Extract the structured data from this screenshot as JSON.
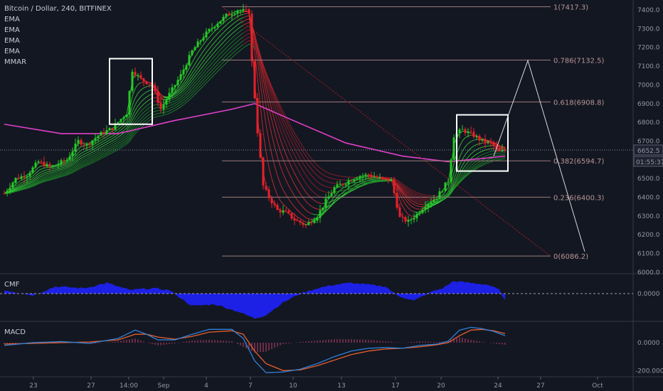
{
  "header": {
    "title": "Bitcoin / Dollar, 240, BITFINEX",
    "indicators": [
      "EMA",
      "EMA",
      "EMA",
      "EMA",
      "MMAR"
    ]
  },
  "colors": {
    "background": "#131722",
    "bull": "#26c926",
    "bear": "#e8202a",
    "ma_long": "#e040c8",
    "fib_line": "#9c7b7b",
    "cmf_fill": "#1e22f0",
    "macd_line": "#2f80d8",
    "signal_line": "#e8602c"
  },
  "price_axis": {
    "ticks": [
      "7400.0",
      "7300.0",
      "7200.0",
      "7100.0",
      "7000.0",
      "6900.0",
      "6800.0",
      "6700.0",
      "6600.0",
      "6500.0",
      "6400.0",
      "6300.0",
      "6200.0",
      "6100.0",
      "6000.0"
    ],
    "last_price": "6652.5",
    "countdown": "01:55:37"
  },
  "time_axis": {
    "ticks": [
      "23",
      "27",
      "14:00",
      "Sep",
      "4",
      "7",
      "10",
      "13",
      "17",
      "20",
      "24",
      "27",
      "Oct"
    ]
  },
  "fibonacci": [
    {
      "label": "1(7417.3)",
      "price": 7417.3
    },
    {
      "label": "0.786(7132.5)",
      "price": 7132.5
    },
    {
      "label": "0.618(6908.8)",
      "price": 6908.8
    },
    {
      "label": "0.382(6594.7)",
      "price": 6594.7
    },
    {
      "label": "0.236(6400.3)",
      "price": 6400.3
    },
    {
      "label": "0(6086.2)",
      "price": 6086.2
    }
  ],
  "cmf": {
    "title": "CMF",
    "ticks": [
      "0.0000"
    ]
  },
  "macd": {
    "title": "MACD",
    "ticks": [
      "0.0000",
      "-200.0000"
    ]
  },
  "chart_data": {
    "type": "candlestick",
    "symbol": "Bitcoin / Dollar",
    "interval": "240",
    "exchange": "BITFINEX",
    "ylim": [
      6000,
      7450
    ],
    "x_ticks": [
      "23",
      "27",
      "14:00",
      "Sep",
      "4",
      "7",
      "10",
      "13",
      "17",
      "20",
      "24",
      "27",
      "Oct"
    ],
    "price_path": [
      [
        0,
        6420
      ],
      [
        4,
        6500
      ],
      [
        8,
        6520
      ],
      [
        12,
        6590
      ],
      [
        16,
        6560
      ],
      [
        22,
        6600
      ],
      [
        26,
        6700
      ],
      [
        29,
        6680
      ],
      [
        33,
        6730
      ],
      [
        38,
        6770
      ],
      [
        43,
        6850
      ],
      [
        45,
        7080
      ],
      [
        48,
        7030
      ],
      [
        52,
        7000
      ],
      [
        55,
        6870
      ],
      [
        58,
        6950
      ],
      [
        62,
        7050
      ],
      [
        66,
        7180
      ],
      [
        70,
        7260
      ],
      [
        74,
        7320
      ],
      [
        78,
        7370
      ],
      [
        82,
        7400
      ],
      [
        86,
        7390
      ],
      [
        87,
        7120
      ],
      [
        89,
        6750
      ],
      [
        91,
        6460
      ],
      [
        93,
        6400
      ],
      [
        96,
        6330
      ],
      [
        99,
        6320
      ],
      [
        102,
        6280
      ],
      [
        106,
        6250
      ],
      [
        110,
        6300
      ],
      [
        113,
        6380
      ],
      [
        116,
        6450
      ],
      [
        120,
        6480
      ],
      [
        124,
        6510
      ],
      [
        128,
        6520
      ],
      [
        132,
        6500
      ],
      [
        136,
        6490
      ],
      [
        139,
        6290
      ],
      [
        142,
        6270
      ],
      [
        145,
        6310
      ],
      [
        148,
        6360
      ],
      [
        152,
        6400
      ],
      [
        156,
        6490
      ],
      [
        158,
        6730
      ],
      [
        161,
        6760
      ],
      [
        165,
        6730
      ],
      [
        168,
        6700
      ],
      [
        171,
        6690
      ],
      [
        174,
        6640
      ],
      [
        176,
        6652
      ]
    ],
    "cmf_path": [
      [
        0,
        0.02
      ],
      [
        10,
        -0.01
      ],
      [
        18,
        0.04
      ],
      [
        28,
        0.03
      ],
      [
        36,
        0.06
      ],
      [
        44,
        0.02
      ],
      [
        52,
        0.03
      ],
      [
        58,
        0.02
      ],
      [
        66,
        -0.07
      ],
      [
        74,
        -0.06
      ],
      [
        82,
        -0.1
      ],
      [
        88,
        -0.14
      ],
      [
        92,
        -0.12
      ],
      [
        98,
        -0.05
      ],
      [
        104,
        0.0
      ],
      [
        110,
        0.03
      ],
      [
        116,
        0.05
      ],
      [
        122,
        0.06
      ],
      [
        128,
        0.05
      ],
      [
        134,
        0.04
      ],
      [
        138,
        -0.01
      ],
      [
        144,
        -0.04
      ],
      [
        150,
        0.01
      ],
      [
        154,
        0.03
      ],
      [
        158,
        0.07
      ],
      [
        164,
        0.06
      ],
      [
        170,
        0.05
      ],
      [
        174,
        0.02
      ],
      [
        176,
        -0.04
      ]
    ],
    "macd_path": [
      [
        0,
        -20
      ],
      [
        10,
        0
      ],
      [
        20,
        8
      ],
      [
        30,
        -5
      ],
      [
        40,
        30
      ],
      [
        46,
        90
      ],
      [
        50,
        60
      ],
      [
        54,
        20
      ],
      [
        60,
        20
      ],
      [
        66,
        60
      ],
      [
        72,
        95
      ],
      [
        80,
        95
      ],
      [
        84,
        30
      ],
      [
        88,
        -130
      ],
      [
        92,
        -215
      ],
      [
        98,
        -210
      ],
      [
        104,
        -190
      ],
      [
        110,
        -150
      ],
      [
        116,
        -100
      ],
      [
        122,
        -60
      ],
      [
        128,
        -40
      ],
      [
        134,
        -35
      ],
      [
        140,
        -40
      ],
      [
        146,
        -20
      ],
      [
        152,
        -10
      ],
      [
        156,
        10
      ],
      [
        160,
        90
      ],
      [
        164,
        110
      ],
      [
        168,
        100
      ],
      [
        172,
        80
      ],
      [
        176,
        50
      ]
    ],
    "signal_path": [
      [
        0,
        -10
      ],
      [
        10,
        -5
      ],
      [
        20,
        0
      ],
      [
        30,
        5
      ],
      [
        40,
        20
      ],
      [
        46,
        60
      ],
      [
        50,
        60
      ],
      [
        54,
        40
      ],
      [
        60,
        25
      ],
      [
        66,
        45
      ],
      [
        72,
        75
      ],
      [
        80,
        85
      ],
      [
        84,
        60
      ],
      [
        88,
        -60
      ],
      [
        92,
        -150
      ],
      [
        98,
        -200
      ],
      [
        104,
        -195
      ],
      [
        110,
        -165
      ],
      [
        116,
        -125
      ],
      [
        122,
        -85
      ],
      [
        128,
        -60
      ],
      [
        134,
        -45
      ],
      [
        140,
        -40
      ],
      [
        146,
        -30
      ],
      [
        152,
        -15
      ],
      [
        156,
        0
      ],
      [
        160,
        50
      ],
      [
        164,
        90
      ],
      [
        168,
        95
      ],
      [
        172,
        85
      ],
      [
        176,
        65
      ]
    ],
    "ma_long_path": [
      [
        0,
        6790
      ],
      [
        20,
        6740
      ],
      [
        40,
        6740
      ],
      [
        60,
        6810
      ],
      [
        80,
        6870
      ],
      [
        88,
        6900
      ],
      [
        100,
        6820
      ],
      [
        120,
        6690
      ],
      [
        140,
        6620
      ],
      [
        156,
        6590
      ],
      [
        170,
        6610
      ],
      [
        176,
        6620
      ]
    ],
    "fib_levels": [
      7417.3,
      7132.5,
      6908.8,
      6594.7,
      6400.3,
      6086.2
    ],
    "highlight_boxes": [
      {
        "x_from": 37,
        "x_to": 52,
        "price_low": 6790,
        "price_high": 7140
      },
      {
        "x_from": 159,
        "x_to": 177,
        "price_low": 6540,
        "price_high": 6840
      }
    ],
    "projection_path": [
      [
        172,
        6620
      ],
      [
        184,
        7130
      ],
      [
        204,
        6110
      ]
    ]
  }
}
